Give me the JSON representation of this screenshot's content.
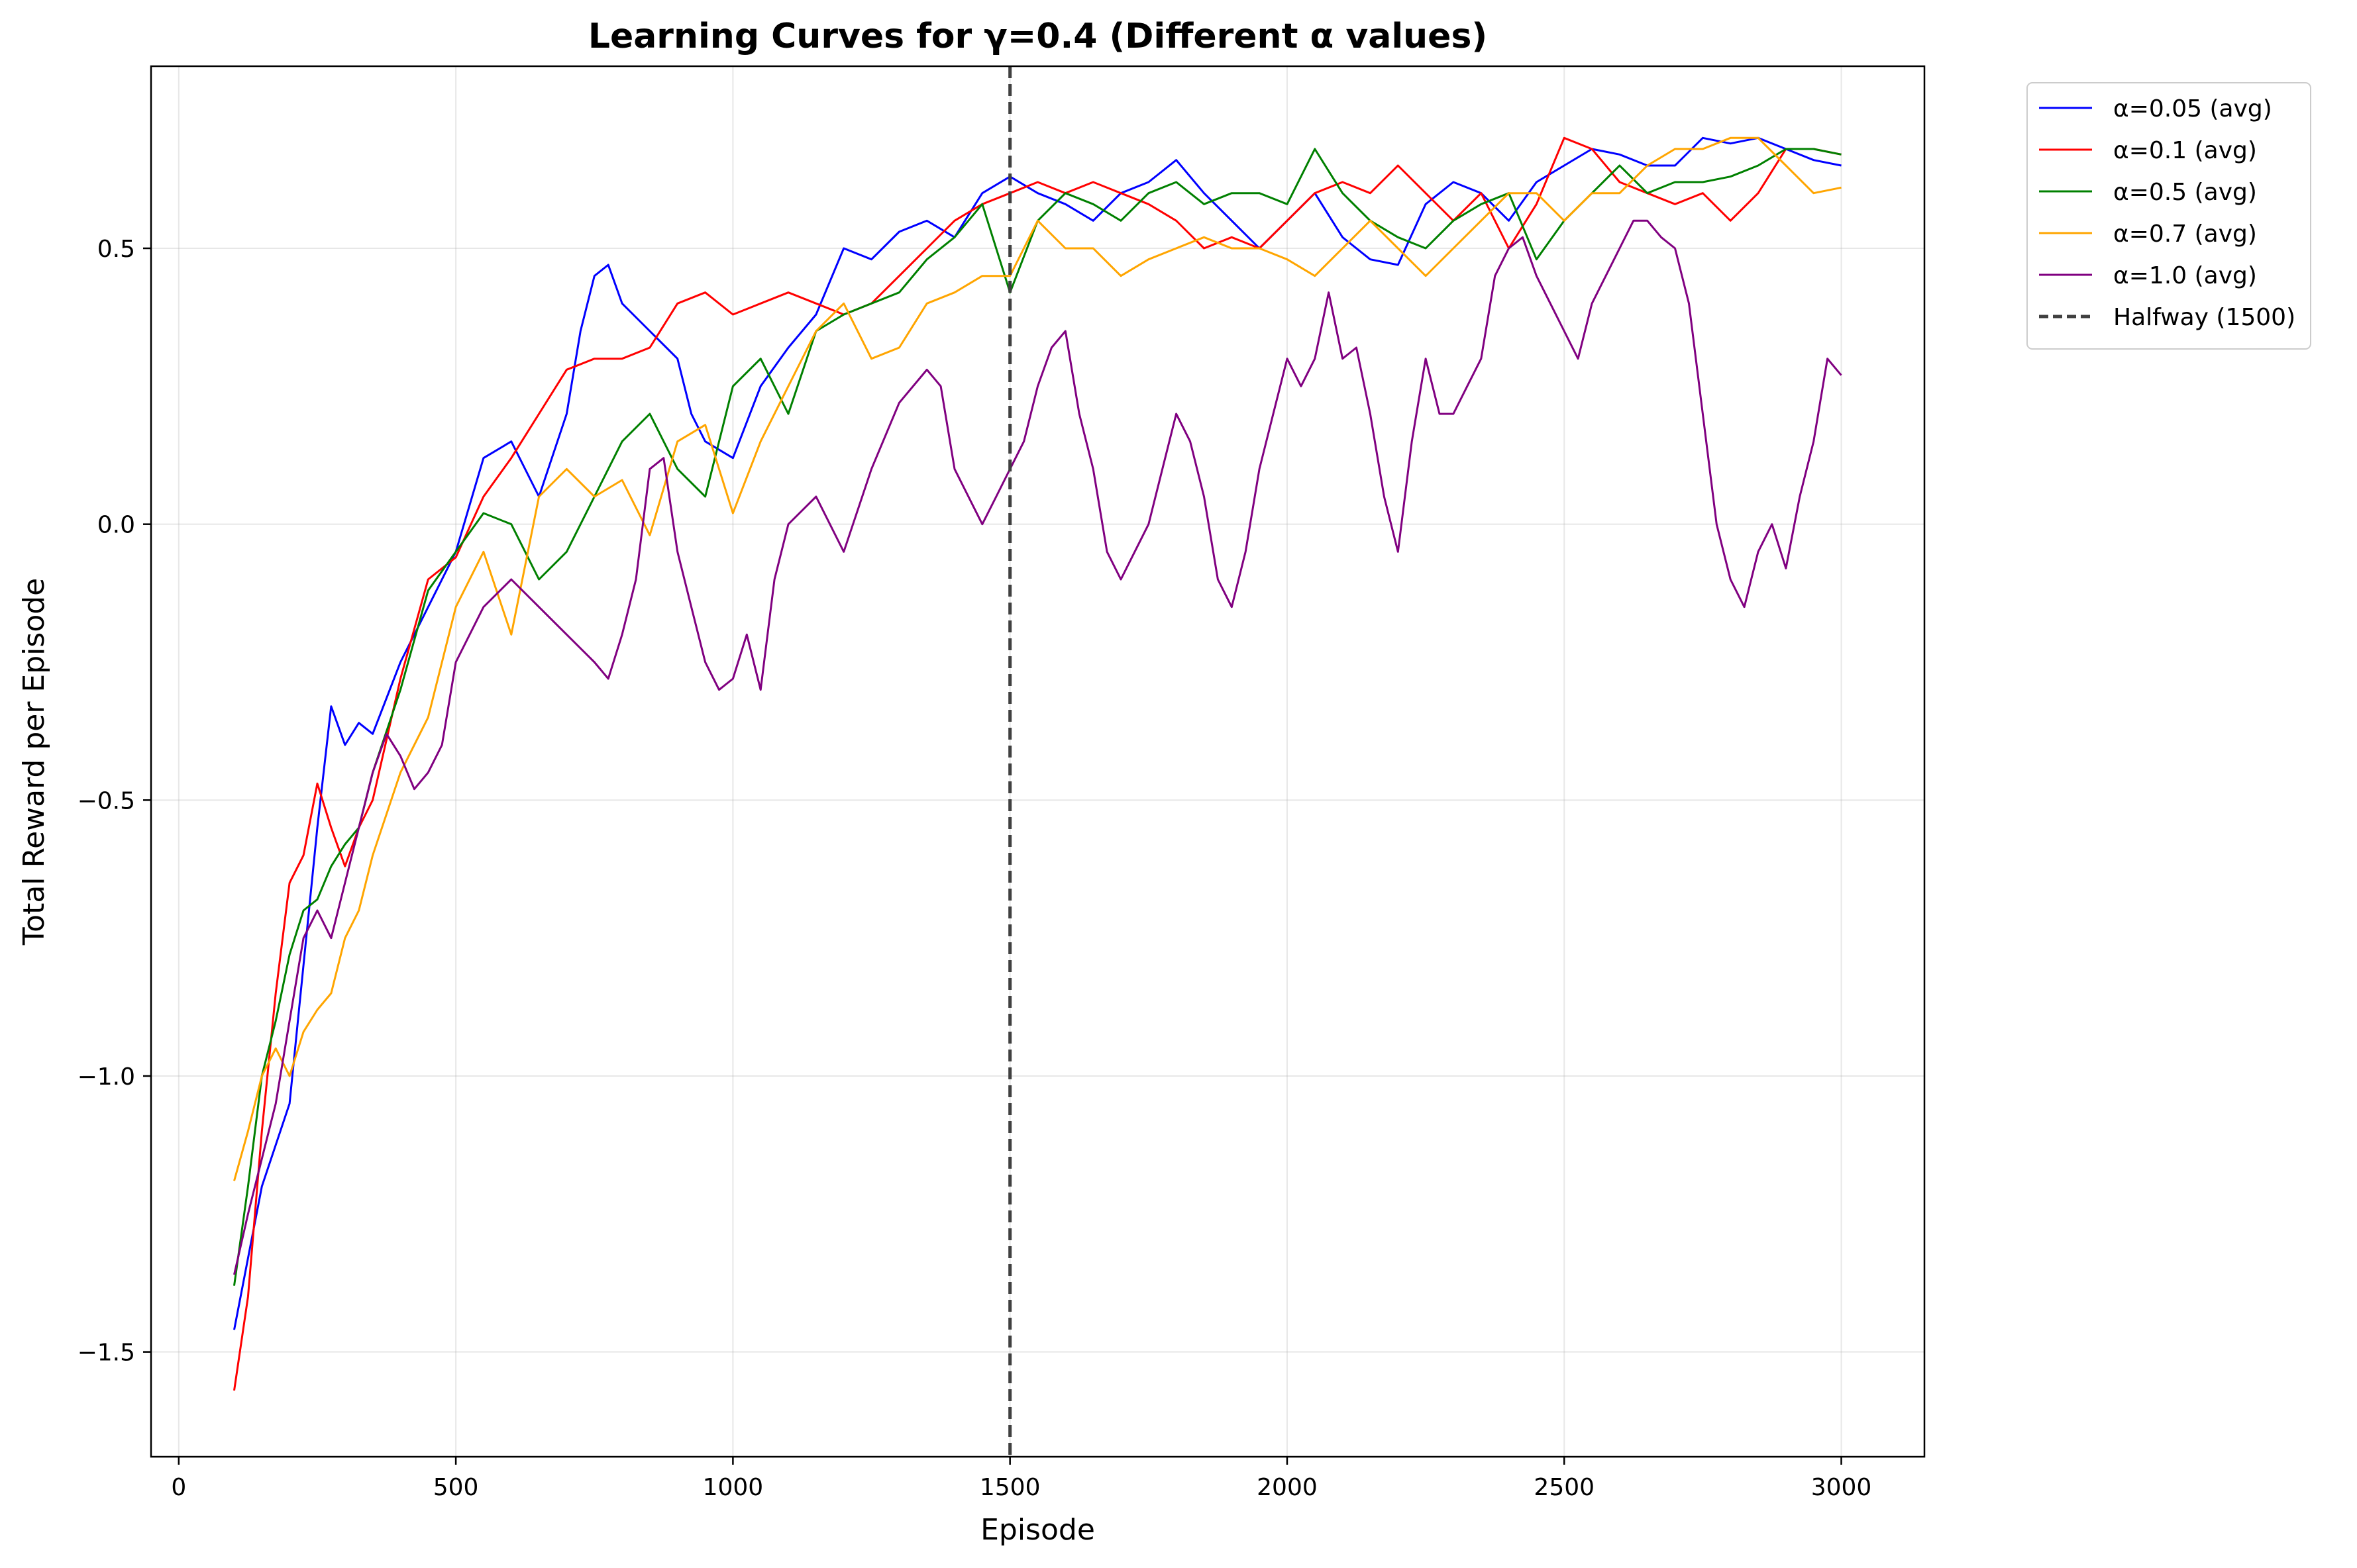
{
  "chart_data": {
    "type": "line",
    "title": "Learning Curves for γ=0.4 (Different α values)",
    "xlabel": "Episode",
    "ylabel": "Total Reward per Episode",
    "xlim": [
      -50,
      3150
    ],
    "ylim": [
      -1.69,
      0.83
    ],
    "xticks": [
      0,
      500,
      1000,
      1500,
      2000,
      2500,
      3000
    ],
    "yticks": [
      -1.5,
      -1.0,
      -0.5,
      0.0,
      0.5
    ],
    "xtick_labels": [
      "0",
      "500",
      "1000",
      "1500",
      "2000",
      "2500",
      "3000"
    ],
    "ytick_labels": [
      "−1.5",
      "−1.0",
      "−0.5",
      "0.0",
      "0.5"
    ],
    "grid": true,
    "legend_position": "outside top-right",
    "vline": {
      "x": 1500,
      "label": "Halfway (1500)",
      "color": "#404040",
      "style": "dashed"
    },
    "series": [
      {
        "name": "α=0.05 (avg)",
        "color": "#0000ff",
        "x": [
          100,
          150,
          200,
          250,
          275,
          300,
          325,
          350,
          400,
          450,
          500,
          550,
          600,
          650,
          700,
          725,
          750,
          775,
          800,
          850,
          900,
          925,
          950,
          1000,
          1050,
          1100,
          1150,
          1200,
          1250,
          1300,
          1350,
          1400,
          1450,
          1500,
          1550,
          1600,
          1650,
          1700,
          1750,
          1800,
          1850,
          1900,
          1950,
          2000,
          2050,
          2100,
          2150,
          2200,
          2250,
          2300,
          2350,
          2400,
          2450,
          2500,
          2550,
          2600,
          2650,
          2700,
          2750,
          2800,
          2850,
          2900,
          2950,
          3000
        ],
        "values": [
          -1.46,
          -1.2,
          -1.05,
          -0.55,
          -0.33,
          -0.4,
          -0.36,
          -0.38,
          -0.25,
          -0.15,
          -0.05,
          0.12,
          0.15,
          0.05,
          0.2,
          0.35,
          0.45,
          0.47,
          0.4,
          0.35,
          0.3,
          0.2,
          0.15,
          0.12,
          0.25,
          0.32,
          0.38,
          0.5,
          0.48,
          0.53,
          0.55,
          0.52,
          0.6,
          0.63,
          0.6,
          0.58,
          0.55,
          0.6,
          0.62,
          0.66,
          0.6,
          0.55,
          0.5,
          0.55,
          0.6,
          0.52,
          0.48,
          0.47,
          0.58,
          0.62,
          0.6,
          0.55,
          0.62,
          0.65,
          0.68,
          0.67,
          0.65,
          0.65,
          0.7,
          0.69,
          0.7,
          0.68,
          0.66,
          0.65
        ]
      },
      {
        "name": "α=0.1 (avg)",
        "color": "#ff0000",
        "x": [
          100,
          125,
          150,
          175,
          200,
          225,
          250,
          275,
          300,
          325,
          350,
          400,
          450,
          500,
          550,
          600,
          650,
          700,
          750,
          800,
          850,
          900,
          950,
          1000,
          1050,
          1100,
          1150,
          1200,
          1250,
          1300,
          1350,
          1400,
          1450,
          1500,
          1550,
          1600,
          1650,
          1700,
          1750,
          1800,
          1850,
          1900,
          1950,
          2000,
          2050,
          2100,
          2150,
          2200,
          2250,
          2300,
          2350,
          2400,
          2450,
          2500,
          2550,
          2600,
          2650,
          2700,
          2750,
          2800,
          2850,
          2900,
          2950,
          3000
        ],
        "values": [
          -1.57,
          -1.4,
          -1.1,
          -0.85,
          -0.65,
          -0.6,
          -0.47,
          -0.55,
          -0.62,
          -0.55,
          -0.5,
          -0.28,
          -0.1,
          -0.06,
          0.05,
          0.12,
          0.2,
          0.28,
          0.3,
          0.3,
          0.32,
          0.4,
          0.42,
          0.38,
          0.4,
          0.42,
          0.4,
          0.38,
          0.4,
          0.45,
          0.5,
          0.55,
          0.58,
          0.6,
          0.62,
          0.6,
          0.62,
          0.6,
          0.58,
          0.55,
          0.5,
          0.52,
          0.5,
          0.55,
          0.6,
          0.62,
          0.6,
          0.65,
          0.6,
          0.55,
          0.6,
          0.5,
          0.58,
          0.7,
          0.68,
          0.62,
          0.6,
          0.58,
          0.6,
          0.55,
          0.6,
          0.68,
          0.68,
          0.67
        ]
      },
      {
        "name": "α=0.5 (avg)",
        "color": "#008000",
        "x": [
          100,
          125,
          150,
          175,
          200,
          225,
          250,
          275,
          300,
          325,
          350,
          400,
          450,
          500,
          550,
          600,
          650,
          700,
          750,
          800,
          850,
          900,
          950,
          1000,
          1050,
          1100,
          1150,
          1200,
          1250,
          1300,
          1350,
          1400,
          1450,
          1500,
          1550,
          1600,
          1650,
          1700,
          1750,
          1800,
          1850,
          1900,
          1950,
          2000,
          2050,
          2100,
          2150,
          2200,
          2250,
          2300,
          2350,
          2400,
          2450,
          2500,
          2550,
          2600,
          2650,
          2700,
          2750,
          2800,
          2850,
          2900,
          2950,
          3000
        ],
        "values": [
          -1.38,
          -1.2,
          -1.0,
          -0.9,
          -0.78,
          -0.7,
          -0.68,
          -0.62,
          -0.58,
          -0.55,
          -0.45,
          -0.3,
          -0.12,
          -0.05,
          0.02,
          0.0,
          -0.1,
          -0.05,
          0.05,
          0.15,
          0.2,
          0.1,
          0.05,
          0.25,
          0.3,
          0.2,
          0.35,
          0.38,
          0.4,
          0.42,
          0.48,
          0.52,
          0.58,
          0.42,
          0.55,
          0.6,
          0.58,
          0.55,
          0.6,
          0.62,
          0.58,
          0.6,
          0.6,
          0.58,
          0.68,
          0.6,
          0.55,
          0.52,
          0.5,
          0.55,
          0.58,
          0.6,
          0.48,
          0.55,
          0.6,
          0.65,
          0.6,
          0.62,
          0.62,
          0.63,
          0.65,
          0.68,
          0.68,
          0.67
        ]
      },
      {
        "name": "α=0.7 (avg)",
        "color": "#ffa500",
        "x": [
          100,
          125,
          150,
          175,
          200,
          225,
          250,
          275,
          300,
          325,
          350,
          400,
          450,
          500,
          550,
          600,
          650,
          700,
          750,
          800,
          850,
          900,
          950,
          1000,
          1050,
          1100,
          1150,
          1200,
          1250,
          1300,
          1350,
          1400,
          1450,
          1500,
          1550,
          1600,
          1650,
          1700,
          1750,
          1800,
          1850,
          1900,
          1950,
          2000,
          2050,
          2100,
          2150,
          2200,
          2250,
          2300,
          2350,
          2400,
          2450,
          2500,
          2550,
          2600,
          2650,
          2700,
          2750,
          2800,
          2850,
          2900,
          2950,
          3000
        ],
        "values": [
          -1.19,
          -1.1,
          -1.0,
          -0.95,
          -1.0,
          -0.92,
          -0.88,
          -0.85,
          -0.75,
          -0.7,
          -0.6,
          -0.45,
          -0.35,
          -0.15,
          -0.05,
          -0.2,
          0.05,
          0.1,
          0.05,
          0.08,
          -0.02,
          0.15,
          0.18,
          0.02,
          0.15,
          0.25,
          0.35,
          0.4,
          0.3,
          0.32,
          0.4,
          0.42,
          0.45,
          0.45,
          0.55,
          0.5,
          0.5,
          0.45,
          0.48,
          0.5,
          0.52,
          0.5,
          0.5,
          0.48,
          0.45,
          0.5,
          0.55,
          0.5,
          0.45,
          0.5,
          0.55,
          0.6,
          0.6,
          0.55,
          0.6,
          0.6,
          0.65,
          0.68,
          0.68,
          0.7,
          0.7,
          0.65,
          0.6,
          0.61
        ]
      },
      {
        "name": "α=1.0 (avg)",
        "color": "#800080",
        "x": [
          100,
          125,
          150,
          175,
          200,
          225,
          250,
          275,
          300,
          325,
          350,
          375,
          400,
          425,
          450,
          475,
          500,
          550,
          600,
          650,
          700,
          750,
          775,
          800,
          825,
          850,
          875,
          900,
          925,
          950,
          975,
          1000,
          1025,
          1050,
          1075,
          1100,
          1150,
          1200,
          1250,
          1300,
          1350,
          1375,
          1400,
          1425,
          1450,
          1475,
          1500,
          1525,
          1550,
          1575,
          1600,
          1625,
          1650,
          1675,
          1700,
          1725,
          1750,
          1775,
          1800,
          1825,
          1850,
          1875,
          1900,
          1925,
          1950,
          1975,
          2000,
          2025,
          2050,
          2075,
          2100,
          2125,
          2150,
          2175,
          2200,
          2225,
          2250,
          2275,
          2300,
          2325,
          2350,
          2375,
          2400,
          2425,
          2450,
          2475,
          2500,
          2525,
          2550,
          2575,
          2600,
          2625,
          2650,
          2675,
          2700,
          2725,
          2750,
          2775,
          2800,
          2825,
          2850,
          2875,
          2900,
          2925,
          2950,
          2975,
          3000
        ],
        "values": [
          -1.36,
          -1.25,
          -1.15,
          -1.05,
          -0.9,
          -0.75,
          -0.7,
          -0.75,
          -0.65,
          -0.55,
          -0.45,
          -0.38,
          -0.42,
          -0.48,
          -0.45,
          -0.4,
          -0.25,
          -0.15,
          -0.1,
          -0.15,
          -0.2,
          -0.25,
          -0.28,
          -0.2,
          -0.1,
          0.1,
          0.12,
          -0.05,
          -0.15,
          -0.25,
          -0.3,
          -0.28,
          -0.2,
          -0.3,
          -0.1,
          0.0,
          0.05,
          -0.05,
          0.1,
          0.22,
          0.28,
          0.25,
          0.1,
          0.05,
          0.0,
          0.05,
          0.1,
          0.15,
          0.25,
          0.32,
          0.35,
          0.2,
          0.1,
          -0.05,
          -0.1,
          -0.05,
          0.0,
          0.1,
          0.2,
          0.15,
          0.05,
          -0.1,
          -0.15,
          -0.05,
          0.1,
          0.2,
          0.3,
          0.25,
          0.3,
          0.42,
          0.3,
          0.32,
          0.2,
          0.05,
          -0.05,
          0.15,
          0.3,
          0.2,
          0.2,
          0.25,
          0.3,
          0.45,
          0.5,
          0.52,
          0.45,
          0.4,
          0.35,
          0.3,
          0.4,
          0.45,
          0.5,
          0.55,
          0.55,
          0.52,
          0.5,
          0.4,
          0.2,
          0.0,
          -0.1,
          -0.15,
          -0.05,
          0.0,
          -0.08,
          0.05,
          0.15,
          0.3,
          0.27
        ]
      }
    ]
  }
}
